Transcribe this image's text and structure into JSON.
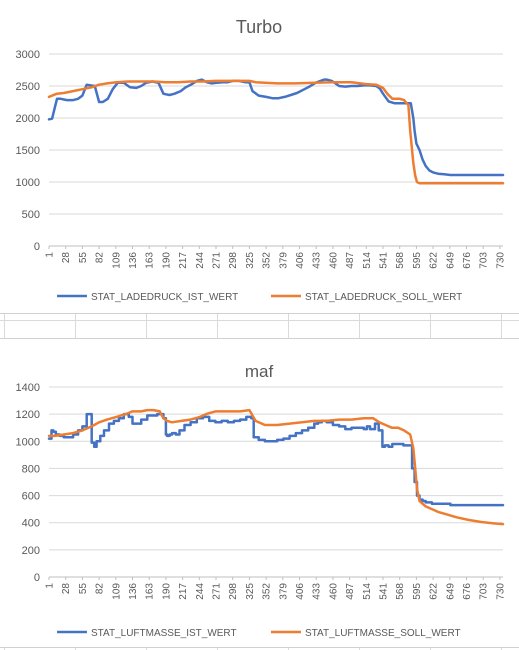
{
  "chart_data": [
    {
      "type": "line",
      "title": "Turbo",
      "ylim": [
        0,
        3000
      ],
      "yticks": [
        "0",
        "500",
        "1000",
        "1500",
        "2000",
        "2500",
        "3000"
      ],
      "xlim": [
        1,
        735
      ],
      "xticks": [
        "1",
        "28",
        "55",
        "82",
        "109",
        "136",
        "163",
        "190",
        "217",
        "244",
        "271",
        "298",
        "325",
        "352",
        "379",
        "406",
        "433",
        "460",
        "487",
        "514",
        "541",
        "568",
        "595",
        "622",
        "649",
        "676",
        "703",
        "730"
      ],
      "grid": true,
      "legend": "bottom",
      "series": [
        {
          "name": "STAT_LADEDRUCK_IST_WERT",
          "color": "#4472c4",
          "x": [
            1,
            6,
            10,
            14,
            20,
            30,
            40,
            48,
            55,
            62,
            68,
            75,
            82,
            88,
            96,
            104,
            112,
            122,
            132,
            142,
            150,
            158,
            168,
            178,
            186,
            190,
            196,
            204,
            214,
            222,
            232,
            240,
            248,
            256,
            264,
            272,
            282,
            290,
            298,
            308,
            318,
            325,
            330,
            340,
            352,
            362,
            372,
            382,
            392,
            402,
            412,
            422,
            432,
            440,
            446,
            450,
            458,
            464,
            470,
            480,
            490,
            500,
            510,
            520,
            530,
            536,
            541,
            550,
            560,
            570,
            580,
            586,
            590,
            592,
            595,
            600,
            605,
            610,
            616,
            622,
            630,
            640,
            650,
            660,
            680,
            700,
            720,
            735
          ],
          "y": [
            1980,
            1990,
            2150,
            2300,
            2300,
            2280,
            2280,
            2300,
            2350,
            2520,
            2510,
            2500,
            2250,
            2250,
            2300,
            2450,
            2550,
            2550,
            2480,
            2470,
            2500,
            2550,
            2570,
            2550,
            2380,
            2370,
            2360,
            2380,
            2420,
            2480,
            2530,
            2580,
            2600,
            2560,
            2540,
            2550,
            2560,
            2560,
            2580,
            2580,
            2560,
            2560,
            2420,
            2350,
            2330,
            2310,
            2310,
            2330,
            2360,
            2390,
            2440,
            2490,
            2550,
            2580,
            2600,
            2600,
            2580,
            2540,
            2500,
            2490,
            2500,
            2500,
            2510,
            2510,
            2500,
            2460,
            2380,
            2260,
            2230,
            2230,
            2230,
            2230,
            2000,
            1800,
            1600,
            1500,
            1350,
            1250,
            1180,
            1150,
            1130,
            1120,
            1110,
            1110,
            1110,
            1110,
            1110,
            1110
          ]
        },
        {
          "name": "STAT_LADEDRUCK_SOLL_WERT",
          "color": "#ed7d31",
          "x": [
            1,
            6,
            14,
            25,
            40,
            55,
            70,
            82,
            95,
            110,
            130,
            150,
            170,
            190,
            210,
            230,
            250,
            270,
            290,
            310,
            325,
            335,
            350,
            370,
            400,
            430,
            460,
            490,
            514,
            530,
            541,
            548,
            556,
            560,
            568,
            575,
            582,
            585,
            590,
            593,
            596,
            600,
            610,
            620,
            650,
            690,
            735
          ],
          "y": [
            2330,
            2350,
            2380,
            2390,
            2420,
            2450,
            2480,
            2520,
            2540,
            2560,
            2570,
            2570,
            2570,
            2560,
            2560,
            2570,
            2570,
            2580,
            2580,
            2580,
            2580,
            2560,
            2550,
            2540,
            2540,
            2550,
            2560,
            2560,
            2530,
            2520,
            2470,
            2380,
            2300,
            2300,
            2300,
            2280,
            2200,
            1800,
            1300,
            1100,
            1000,
            980,
            980,
            980,
            980,
            980,
            980
          ]
        }
      ]
    },
    {
      "type": "line",
      "title": "maf",
      "ylim": [
        0,
        1400
      ],
      "yticks": [
        "0",
        "200",
        "400",
        "600",
        "800",
        "1000",
        "1200",
        "1400"
      ],
      "xlim": [
        1,
        735
      ],
      "xticks": [
        "1",
        "28",
        "55",
        "82",
        "109",
        "136",
        "163",
        "190",
        "217",
        "244",
        "271",
        "298",
        "325",
        "352",
        "379",
        "406",
        "433",
        "460",
        "487",
        "514",
        "541",
        "568",
        "595",
        "622",
        "649",
        "676",
        "703",
        "730"
      ],
      "grid": true,
      "legend": "bottom",
      "series": [
        {
          "name": "STAT_LUFTMASSE_IST_WERT",
          "color": "#4472c4",
          "x": [
            1,
            5,
            8,
            12,
            18,
            25,
            32,
            40,
            48,
            55,
            62,
            66,
            70,
            74,
            78,
            84,
            90,
            98,
            106,
            114,
            122,
            130,
            136,
            142,
            150,
            160,
            168,
            176,
            186,
            190,
            192,
            196,
            200,
            206,
            212,
            220,
            230,
            240,
            250,
            260,
            270,
            280,
            290,
            300,
            310,
            320,
            328,
            332,
            340,
            350,
            360,
            370,
            380,
            390,
            400,
            410,
            420,
            430,
            436,
            442,
            450,
            460,
            470,
            480,
            490,
            500,
            510,
            515,
            520,
            528,
            534,
            540,
            544,
            550,
            556,
            562,
            568,
            574,
            580,
            584,
            588,
            592,
            596,
            600,
            605,
            610,
            620,
            630,
            650,
            670,
            690,
            710,
            735
          ],
          "y": [
            1020,
            1080,
            1070,
            1050,
            1040,
            1030,
            1030,
            1050,
            1080,
            1110,
            1200,
            1200,
            990,
            960,
            1000,
            1040,
            1080,
            1130,
            1150,
            1170,
            1200,
            1180,
            1130,
            1130,
            1160,
            1190,
            1190,
            1200,
            1170,
            1050,
            1040,
            1050,
            1060,
            1050,
            1080,
            1120,
            1140,
            1170,
            1180,
            1150,
            1140,
            1150,
            1140,
            1150,
            1160,
            1180,
            1170,
            1030,
            1010,
            1000,
            1000,
            1010,
            1020,
            1040,
            1060,
            1080,
            1100,
            1130,
            1140,
            1150,
            1140,
            1120,
            1110,
            1090,
            1100,
            1100,
            1090,
            1110,
            1090,
            1130,
            1080,
            960,
            970,
            960,
            980,
            980,
            980,
            970,
            970,
            970,
            800,
            700,
            600,
            570,
            560,
            550,
            540,
            540,
            530,
            530,
            530,
            530,
            530
          ],
          "step": true
        },
        {
          "name": "STAT_LUFTMASSE_SOLL_WERT",
          "color": "#ed7d31",
          "x": [
            1,
            10,
            25,
            40,
            55,
            70,
            82,
            95,
            110,
            125,
            136,
            150,
            160,
            170,
            180,
            186,
            192,
            200,
            215,
            230,
            245,
            255,
            262,
            270,
            280,
            290,
            300,
            310,
            325,
            335,
            350,
            370,
            390,
            410,
            430,
            450,
            470,
            490,
            510,
            525,
            535,
            545,
            555,
            565,
            575,
            585,
            590,
            593,
            596,
            600,
            610,
            620,
            630,
            645,
            660,
            680,
            700,
            720,
            735
          ],
          "y": [
            1040,
            1040,
            1050,
            1060,
            1080,
            1110,
            1140,
            1160,
            1180,
            1200,
            1220,
            1220,
            1230,
            1230,
            1220,
            1170,
            1150,
            1140,
            1150,
            1160,
            1180,
            1200,
            1210,
            1220,
            1220,
            1220,
            1220,
            1220,
            1230,
            1150,
            1120,
            1120,
            1130,
            1140,
            1150,
            1150,
            1160,
            1160,
            1170,
            1170,
            1140,
            1120,
            1100,
            1100,
            1080,
            1050,
            950,
            800,
            650,
            560,
            520,
            500,
            480,
            460,
            440,
            420,
            405,
            395,
            390
          ]
        }
      ]
    }
  ]
}
